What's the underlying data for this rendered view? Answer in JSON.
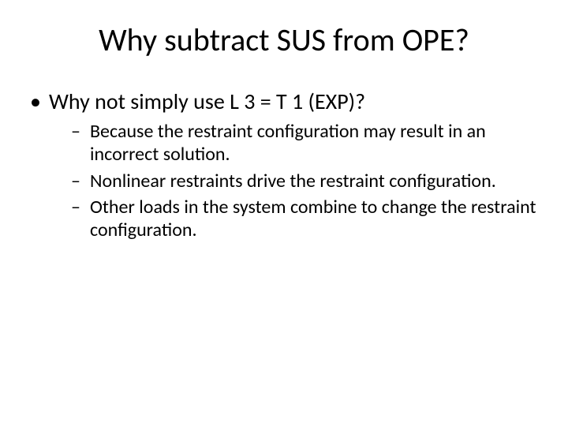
{
  "slide": {
    "background_color": "#ffffff",
    "text_color": "#000000",
    "title": {
      "text": "Why subtract SUS from OPE?",
      "fontsize": 40,
      "weight": 400,
      "align": "center"
    },
    "bullets": [
      {
        "text": "Why not simply use L 3 = T 1 (EXP)?",
        "fontsize": 28,
        "marker": "•",
        "children": [
          {
            "text": "Because the restraint configuration may result in an incorrect solution.",
            "fontsize": 24,
            "marker": "–"
          },
          {
            "text": "Nonlinear restraints drive the restraint configuration.",
            "fontsize": 24,
            "marker": "–"
          },
          {
            "text": "Other loads in the system combine to change the restraint configuration.",
            "fontsize": 24,
            "marker": "–"
          }
        ]
      }
    ]
  }
}
